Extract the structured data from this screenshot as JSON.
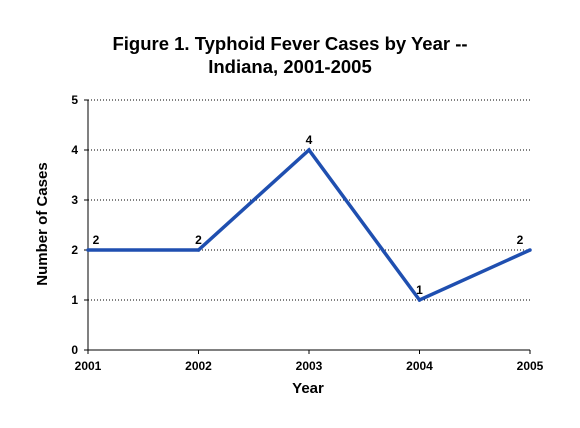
{
  "chart_data": {
    "type": "line",
    "title": "Figure 1.  Typhoid Fever Cases by Year --",
    "subtitle": "Indiana, 2001-2005",
    "xlabel": "Year",
    "ylabel": "Number of Cases",
    "categories": [
      "2001",
      "2002",
      "2003",
      "2004",
      "2005"
    ],
    "series": [
      {
        "values": [
          2,
          2,
          4,
          1,
          2
        ],
        "color": "#1f4fb0"
      }
    ],
    "data_labels": [
      "2",
      "2",
      "4",
      "1",
      "2"
    ],
    "ylim": [
      0,
      5
    ],
    "yticks": [
      "0",
      "1",
      "2",
      "3",
      "4",
      "5"
    ],
    "grid": "horizontal dotted",
    "legend": "none"
  }
}
